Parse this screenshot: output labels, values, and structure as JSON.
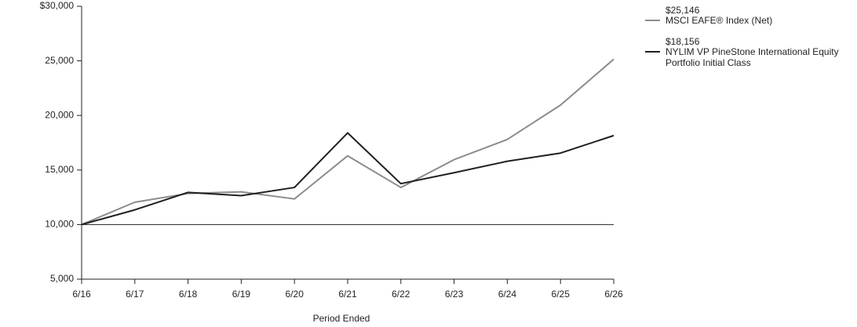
{
  "chart_data": {
    "type": "line",
    "xlabel": "Period Ended",
    "categories": [
      "6/16",
      "6/17",
      "6/18",
      "6/19",
      "6/20",
      "6/21",
      "6/22",
      "6/23",
      "6/24",
      "6/25",
      "6/26"
    ],
    "series": [
      {
        "name": "MSCI EAFE® Index (Net)",
        "color": "#8c8c8c",
        "values": [
          10000,
          12050,
          12850,
          13000,
          12350,
          16300,
          13400,
          15950,
          17800,
          20950,
          25146
        ],
        "value_labels": [
          null,
          null,
          null,
          null,
          null,
          null,
          null,
          null,
          null,
          null,
          "$25,146"
        ]
      },
      {
        "name": "NYLIM VP PineStone International Equity Portfolio Initial Class",
        "color": "#231f20",
        "values": [
          10000,
          11350,
          12950,
          12650,
          13400,
          18400,
          13750,
          14750,
          15800,
          16550,
          18156
        ],
        "value_labels": [
          null,
          null,
          null,
          null,
          null,
          null,
          null,
          null,
          null,
          null,
          "$18,156"
        ]
      }
    ],
    "ylim": [
      5000,
      30000
    ],
    "yticks": [
      {
        "value": 5000,
        "label": "5,000"
      },
      {
        "value": 10000,
        "label": "10,000"
      },
      {
        "value": 15000,
        "label": "15,000"
      },
      {
        "value": 20000,
        "label": "20,000"
      },
      {
        "value": 25000,
        "label": "25,000"
      },
      {
        "value": 30000,
        "label": "$30,000"
      }
    ],
    "baseline": 10000,
    "grid": false,
    "legend": "right"
  }
}
